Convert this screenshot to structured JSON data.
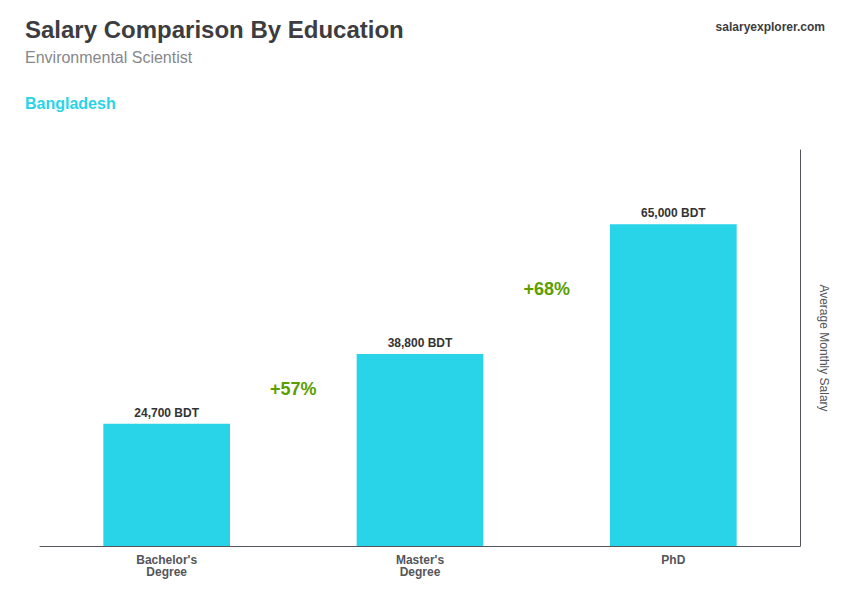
{
  "chart_data": {
    "type": "bar",
    "title": "Salary Comparison By Education",
    "subtitle": "Environmental Scientist",
    "country": "Bangladesh",
    "watermark": "salaryexplorer.com",
    "categories": [
      "Bachelor's\nDegree",
      "Master's\nDegree",
      "PhD"
    ],
    "values": [
      24700,
      38800,
      65000
    ],
    "value_labels": [
      "24,700 BDT",
      "38,800 BDT",
      "65,000 BDT"
    ],
    "data_labels": true,
    "annotations": [
      "+57%",
      "+68%"
    ],
    "ylabel": "Average Monthly Salary",
    "ylim": [
      0,
      80000
    ],
    "tick_labels": "x",
    "grid": false,
    "color": "#29d4e8"
  }
}
